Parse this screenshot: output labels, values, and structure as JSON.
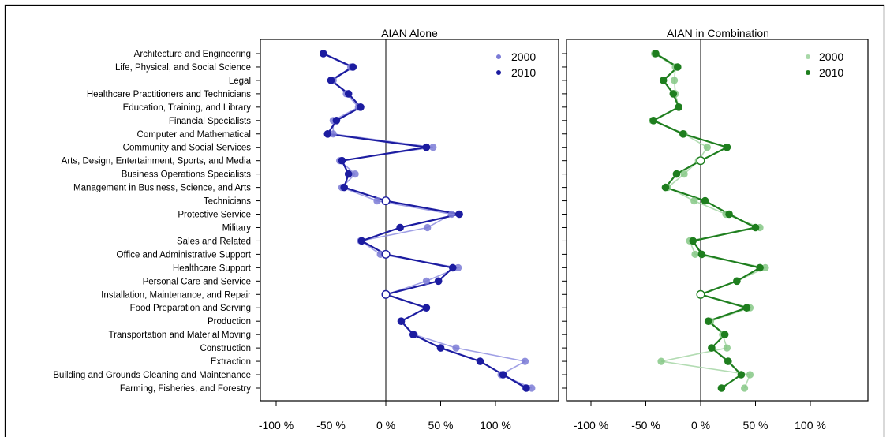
{
  "chart_data": [
    {
      "type": "line",
      "title": "AIAN Alone",
      "xlabel": "",
      "ylabel": "",
      "x_ticks": [
        "-100 %",
        "-50 %",
        "0 %",
        "50 %",
        "100 %"
      ],
      "xlim": [
        -100,
        135
      ],
      "categories": [
        "Architecture and Engineering",
        "Life, Physical, and Social Science",
        "Legal",
        "Healthcare Practitioners and Technicians",
        "Education, Training, and Library",
        "Financial Specialists",
        "Computer and Mathematical",
        "Community and Social Services",
        "Arts, Design, Entertainment, Sports, and Media",
        "Business Operations Specialists",
        "Management in Business, Science, and Arts",
        "Technicians",
        "Protective Service",
        "Military",
        "Sales and Related",
        "Office and Administrative Support",
        "Healthcare Support",
        "Personal Care and Service",
        "Installation, Maintenance, and Repair",
        "Food Preparation and Serving",
        "Production",
        "Transportation and Material Moving",
        "Construction",
        "Extraction",
        "Building and Grounds Cleaning and Maintenance",
        "Farming, Fisheries, and Forestry"
      ],
      "legend_position": "top-right",
      "series": [
        {
          "name": "2000",
          "color": "#7b7bd6",
          "values": [
            -57,
            -32,
            -48,
            -36,
            -25,
            -48,
            -48,
            43,
            -42,
            -28,
            -40,
            -8,
            60,
            38,
            -23,
            -5,
            66,
            37,
            1,
            37,
            14,
            26,
            64,
            127,
            105,
            133
          ]
        },
        {
          "name": "2010",
          "color": "#1c1ca0",
          "values": [
            -57,
            -30,
            -50,
            -34,
            -23,
            -45,
            -53,
            37,
            -40,
            -34,
            -38,
            0,
            67,
            13,
            -22,
            0,
            61,
            48,
            0,
            37,
            14,
            25,
            50,
            86,
            107,
            128
          ]
        }
      ]
    },
    {
      "type": "line",
      "title": "AIAN in Combination",
      "xlabel": "",
      "ylabel": "",
      "x_ticks": [
        "-100 %",
        "-50 %",
        "0 %",
        "50 %",
        "100 %"
      ],
      "xlim": [
        -100,
        135
      ],
      "categories": [
        "Architecture and Engineering",
        "Life, Physical, and Social Science",
        "Legal",
        "Healthcare Practitioners and Technicians",
        "Education, Training, and Library",
        "Financial Specialists",
        "Computer and Mathematical",
        "Community and Social Services",
        "Arts, Design, Entertainment, Sports, and Media",
        "Business Operations Specialists",
        "Management in Business, Science, and Arts",
        "Technicians",
        "Protective Service",
        "Military",
        "Sales and Related",
        "Office and Administrative Support",
        "Healthcare Support",
        "Personal Care and Service",
        "Installation, Maintenance, and Repair",
        "Food Preparation and Serving",
        "Production",
        "Transportation and Material Moving",
        "Construction",
        "Extraction",
        "Building and Grounds Cleaning and Maintenance",
        "Farming, Fisheries, and Forestry"
      ],
      "legend_position": "top-right",
      "series": [
        {
          "name": "2000",
          "color": "#86c886",
          "values": [
            -42,
            -23,
            -24,
            -23,
            -20,
            -44,
            -15,
            6,
            -2,
            -15,
            -30,
            -6,
            23,
            54,
            -10,
            -5,
            59,
            33,
            0,
            45,
            9,
            20,
            24,
            -36,
            45,
            40
          ]
        },
        {
          "name": "2010",
          "color": "#1e7e1e",
          "values": [
            -41,
            -21,
            -34,
            -25,
            -20,
            -43,
            -16,
            24,
            0,
            -22,
            -32,
            4,
            26,
            50,
            -7,
            1,
            54,
            33,
            0,
            42,
            7,
            22,
            10,
            25,
            37,
            19
          ]
        }
      ]
    }
  ]
}
